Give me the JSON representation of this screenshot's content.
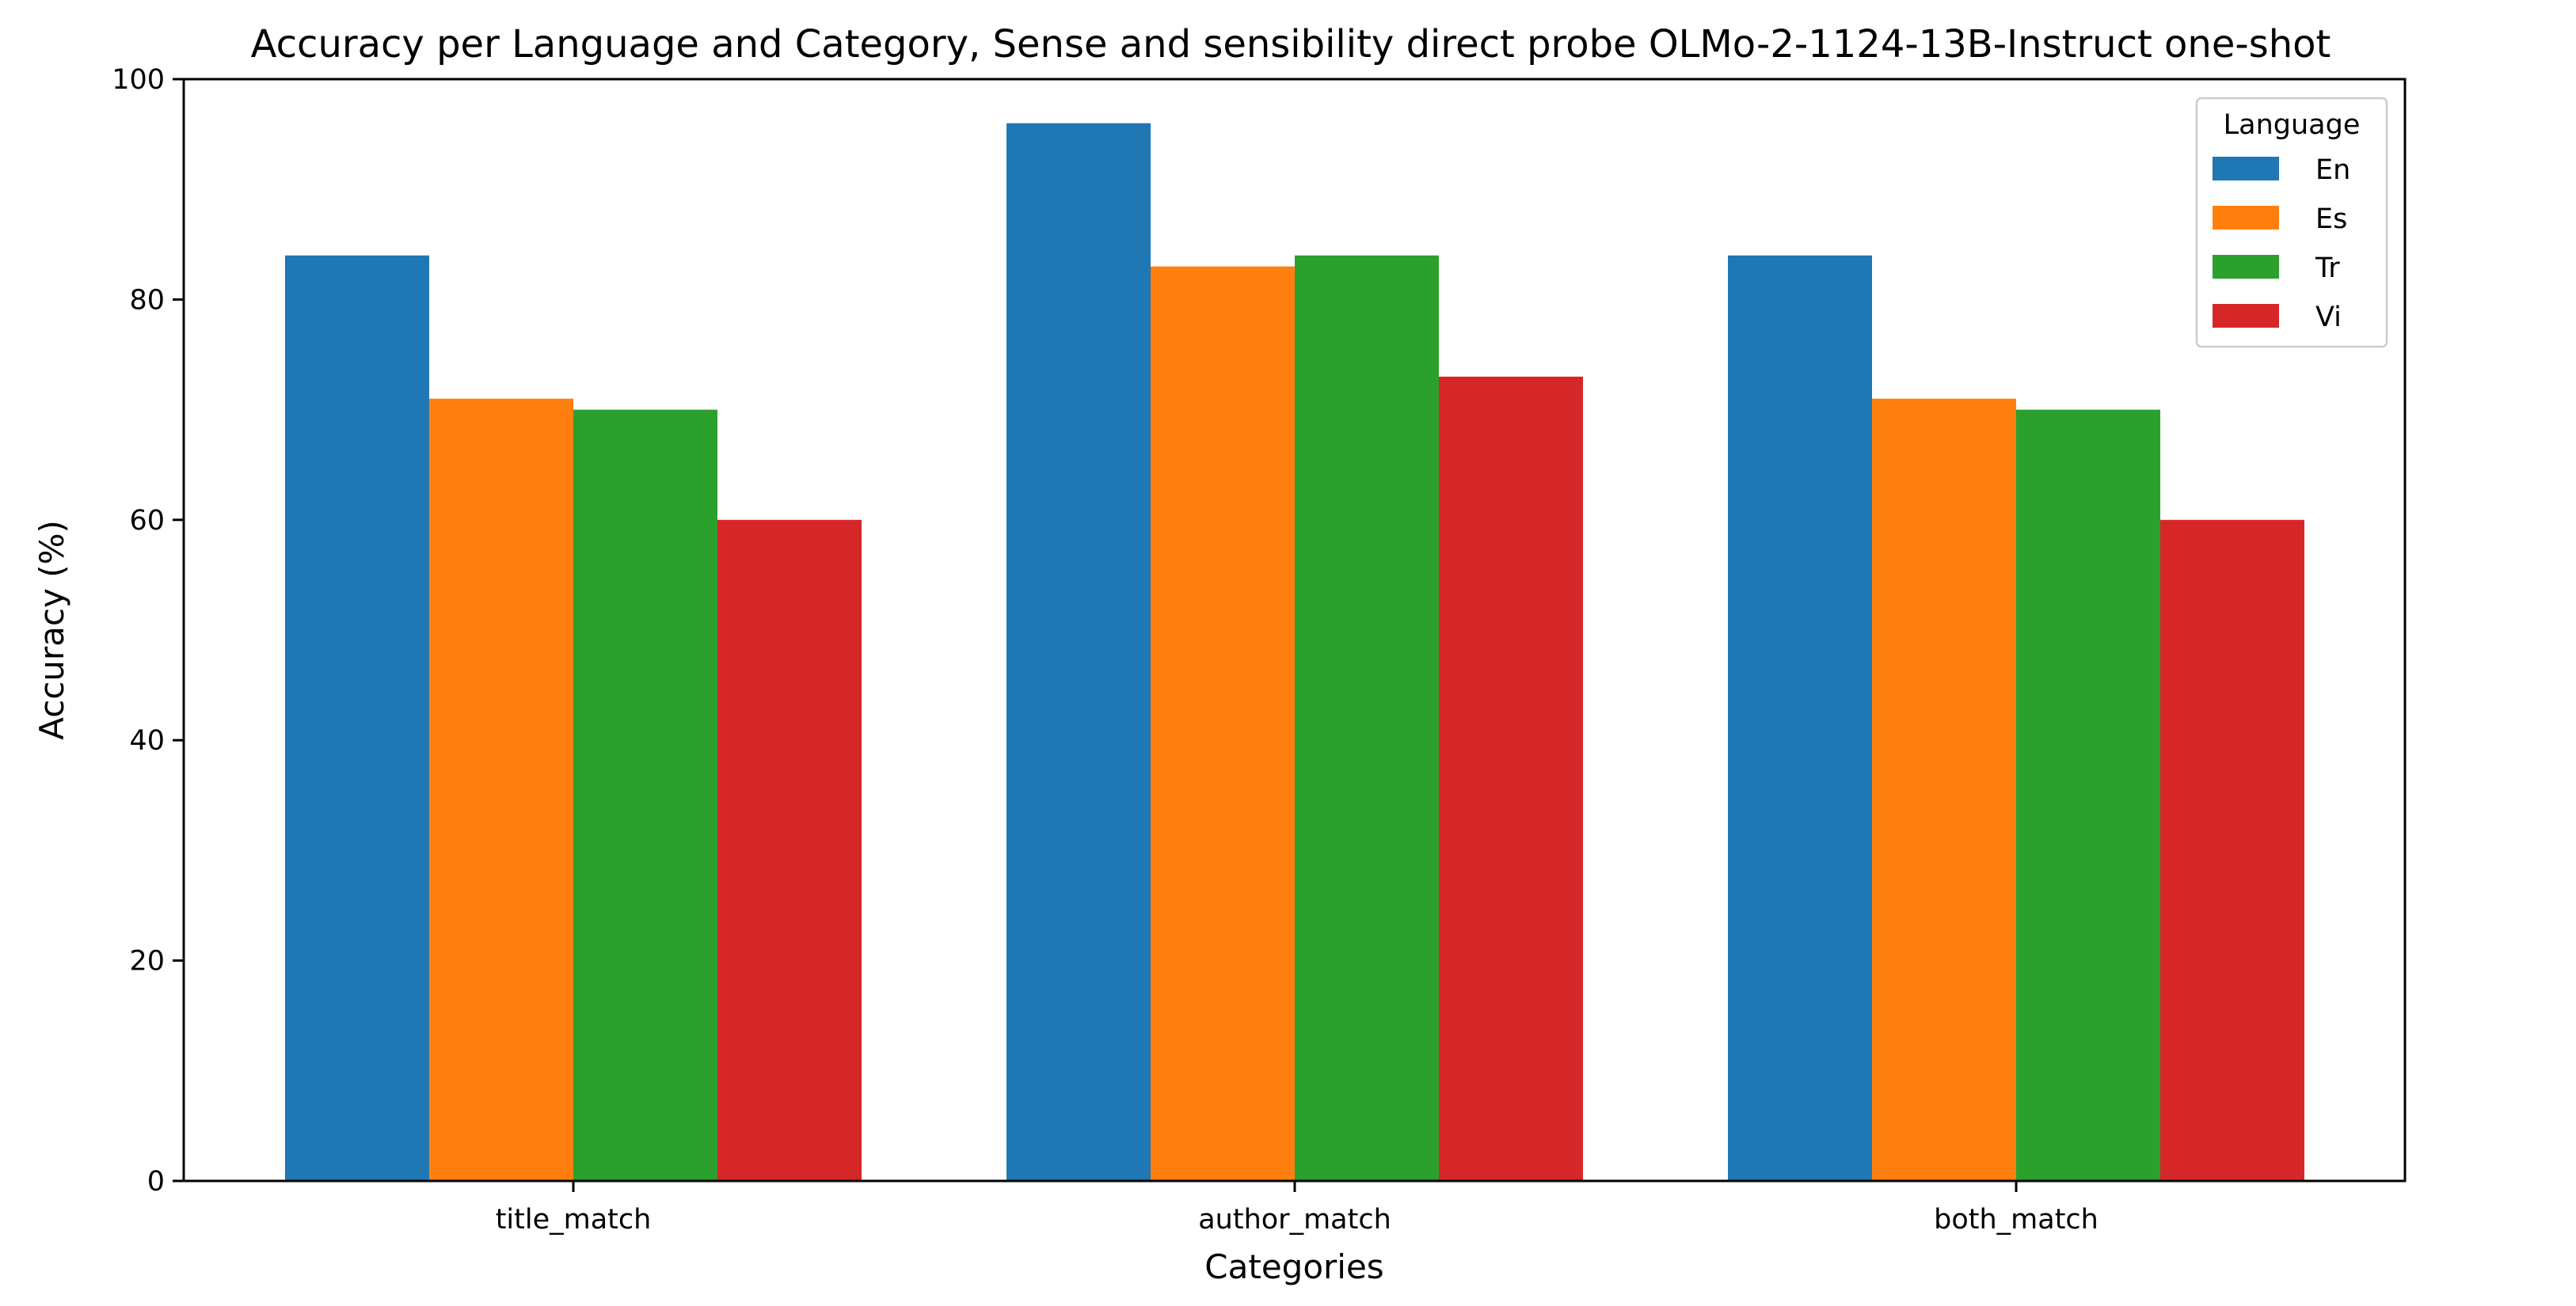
{
  "chart_data": {
    "type": "bar",
    "title": "Accuracy per Language and Category, Sense and sensibility direct probe OLMo-2-1124-13B-Instruct one-shot",
    "xlabel": "Categories",
    "ylabel": "Accuracy (%)",
    "ylim": [
      0,
      100
    ],
    "yticks": [
      0,
      20,
      40,
      60,
      80,
      100
    ],
    "categories": [
      "title_match",
      "author_match",
      "both_match"
    ],
    "legend": {
      "title": "Language",
      "placement": "top-right"
    },
    "grid": false,
    "series": [
      {
        "name": "En",
        "color": "#1f77b4",
        "values": [
          84,
          96,
          84
        ]
      },
      {
        "name": "Es",
        "color": "#ff7f0e",
        "values": [
          71,
          83,
          71
        ]
      },
      {
        "name": "Tr",
        "color": "#2ca02c",
        "values": [
          70,
          84,
          70
        ]
      },
      {
        "name": "Vi",
        "color": "#d62728",
        "values": [
          60,
          73,
          60
        ]
      }
    ]
  }
}
